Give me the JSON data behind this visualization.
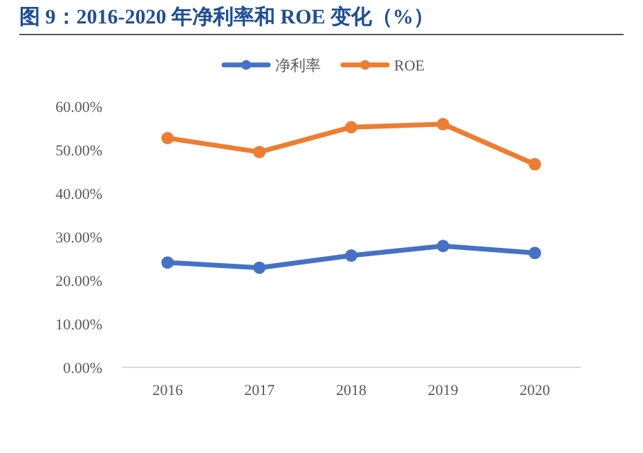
{
  "chart_data": {
    "type": "line",
    "title": "图 9：2016-2020 年净利率和 ROE 变化（%）",
    "categories": [
      "2016",
      "2017",
      "2018",
      "2019",
      "2020"
    ],
    "series": [
      {
        "name": "净利率",
        "color": "#4472c4",
        "values": [
          24.1,
          22.9,
          25.7,
          27.9,
          26.3
        ]
      },
      {
        "name": "ROE",
        "color": "#ed7d31",
        "values": [
          52.7,
          49.5,
          55.2,
          55.9,
          46.7
        ]
      }
    ],
    "ylim": [
      0,
      60
    ],
    "yticks": [
      {
        "value": 0,
        "label": "0.00%"
      },
      {
        "value": 10,
        "label": "10.00%"
      },
      {
        "value": 20,
        "label": "20.00%"
      },
      {
        "value": 30,
        "label": "30.00%"
      },
      {
        "value": 40,
        "label": "40.00%"
      },
      {
        "value": 50,
        "label": "50.00%"
      },
      {
        "value": 60,
        "label": "60.00%"
      }
    ],
    "marker": "circle",
    "line_style": "solid",
    "legend": "top",
    "grid": false
  }
}
